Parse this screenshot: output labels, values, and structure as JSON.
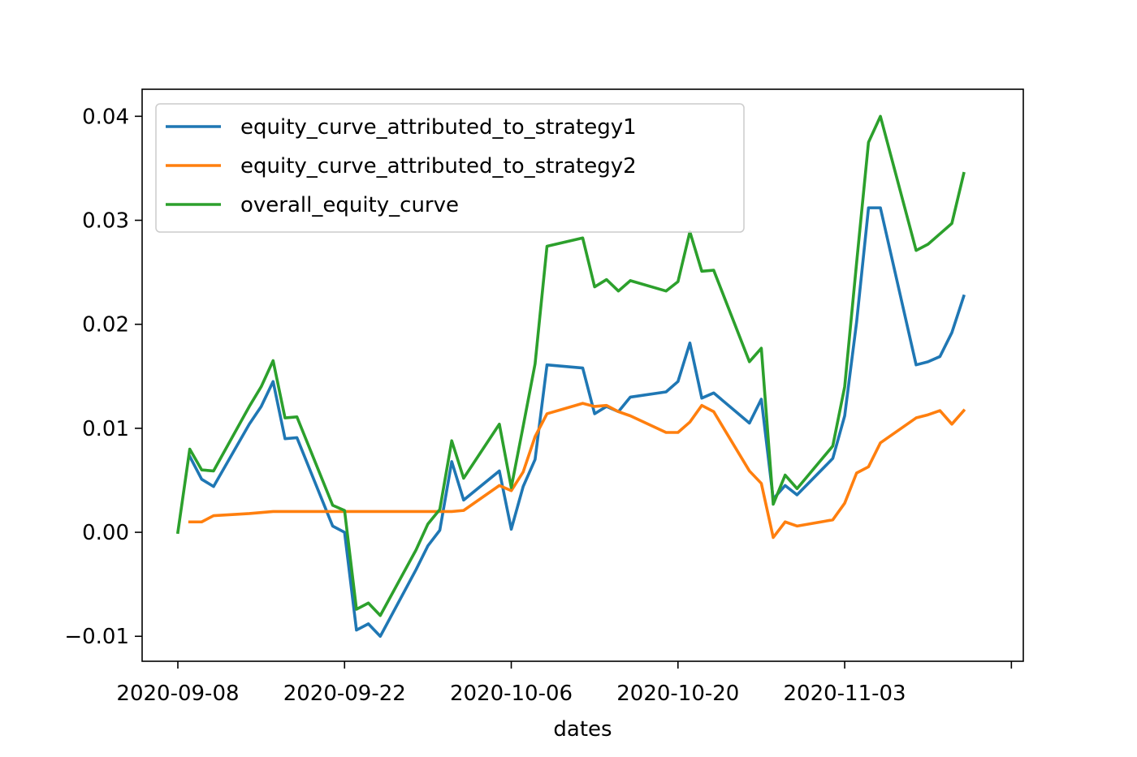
{
  "chart_data": {
    "type": "line",
    "title": "",
    "xlabel": "dates",
    "ylabel": "",
    "x": [
      "2020-09-08",
      "2020-09-09",
      "2020-09-10",
      "2020-09-11",
      "2020-09-14",
      "2020-09-15",
      "2020-09-16",
      "2020-09-17",
      "2020-09-18",
      "2020-09-21",
      "2020-09-22",
      "2020-09-23",
      "2020-09-24",
      "2020-09-25",
      "2020-09-28",
      "2020-09-29",
      "2020-09-30",
      "2020-10-01",
      "2020-10-02",
      "2020-10-05",
      "2020-10-06",
      "2020-10-07",
      "2020-10-08",
      "2020-10-09",
      "2020-10-12",
      "2020-10-13",
      "2020-10-14",
      "2020-10-15",
      "2020-10-16",
      "2020-10-19",
      "2020-10-20",
      "2020-10-21",
      "2020-10-22",
      "2020-10-23",
      "2020-10-26",
      "2020-10-27",
      "2020-10-28",
      "2020-10-29",
      "2020-10-30",
      "2020-11-02",
      "2020-11-03",
      "2020-11-04",
      "2020-11-05",
      "2020-11-06",
      "2020-11-09",
      "2020-11-10",
      "2020-11-11",
      "2020-11-12",
      "2020-11-13",
      "2020-11-16"
    ],
    "x_ticks": [
      "2020-09-08",
      "2020-09-22",
      "2020-10-06",
      "2020-10-20",
      "2020-11-03"
    ],
    "y_ticks": [
      -0.01,
      0.0,
      0.01,
      0.02,
      0.03,
      0.04
    ],
    "y_tick_labels": [
      "−0.01",
      "0.00",
      "0.01",
      "0.02",
      "0.03",
      "0.04"
    ],
    "xlim": [
      "2020-09-05",
      "2020-11-18"
    ],
    "ylim": [
      -0.0124,
      0.0426
    ],
    "grid": false,
    "legend_position": "top-left",
    "series": [
      {
        "name": "equity_curve_attributed_to_strategy1",
        "color": "#1f77b4",
        "values": [
          null,
          0.0073,
          0.0051,
          0.0044,
          0.0104,
          0.0121,
          0.0145,
          0.009,
          0.0091,
          0.0006,
          0.0,
          -0.0094,
          -0.0088,
          -0.01,
          -0.0036,
          -0.0013,
          0.0002,
          0.0068,
          0.0031,
          0.0059,
          0.0003,
          0.0044,
          0.007,
          0.0161,
          0.0158,
          0.0114,
          0.0121,
          0.0116,
          0.013,
          0.0135,
          0.0145,
          0.0182,
          0.0129,
          0.0134,
          0.0105,
          0.0128,
          0.0032,
          0.0045,
          0.0036,
          0.0071,
          0.0112,
          0.0202,
          0.0312,
          0.0312,
          0.0161,
          0.0164,
          0.0169,
          0.0192,
          0.0227,
          null
        ]
      },
      {
        "name": "equity_curve_attributed_to_strategy2",
        "color": "#ff7f0e",
        "values": [
          null,
          0.001,
          0.001,
          0.0016,
          0.0018,
          0.0019,
          0.002,
          0.002,
          0.002,
          0.002,
          0.002,
          0.002,
          0.002,
          0.002,
          0.002,
          0.002,
          0.002,
          0.002,
          0.0021,
          0.0045,
          0.004,
          0.0058,
          0.0092,
          0.0114,
          0.0124,
          0.0121,
          0.0122,
          0.0116,
          0.0112,
          0.0096,
          0.0096,
          0.0106,
          0.0122,
          0.0116,
          0.0059,
          0.0047,
          -0.0005,
          0.001,
          0.0006,
          0.0012,
          0.0028,
          0.0057,
          0.0063,
          0.0086,
          0.011,
          0.0113,
          0.0117,
          0.0104,
          0.0117,
          null
        ]
      },
      {
        "name": "overall_equity_curve",
        "color": "#2ca02c",
        "values": [
          0.0,
          0.008,
          0.006,
          0.0059,
          0.0121,
          0.014,
          0.0165,
          0.011,
          0.0111,
          0.0026,
          0.0021,
          -0.0074,
          -0.0068,
          -0.008,
          -0.0017,
          0.0008,
          0.0022,
          0.0088,
          0.0052,
          0.0104,
          0.0043,
          0.0102,
          0.0162,
          0.0275,
          0.0283,
          0.0236,
          0.0243,
          0.0232,
          0.0242,
          0.0232,
          0.0241,
          0.0289,
          0.0251,
          0.0252,
          0.0164,
          0.0177,
          0.0027,
          0.0055,
          0.0042,
          0.0083,
          0.014,
          0.0259,
          0.0375,
          0.04,
          0.0271,
          0.0277,
          0.0287,
          0.0297,
          0.0345,
          null
        ]
      }
    ]
  }
}
